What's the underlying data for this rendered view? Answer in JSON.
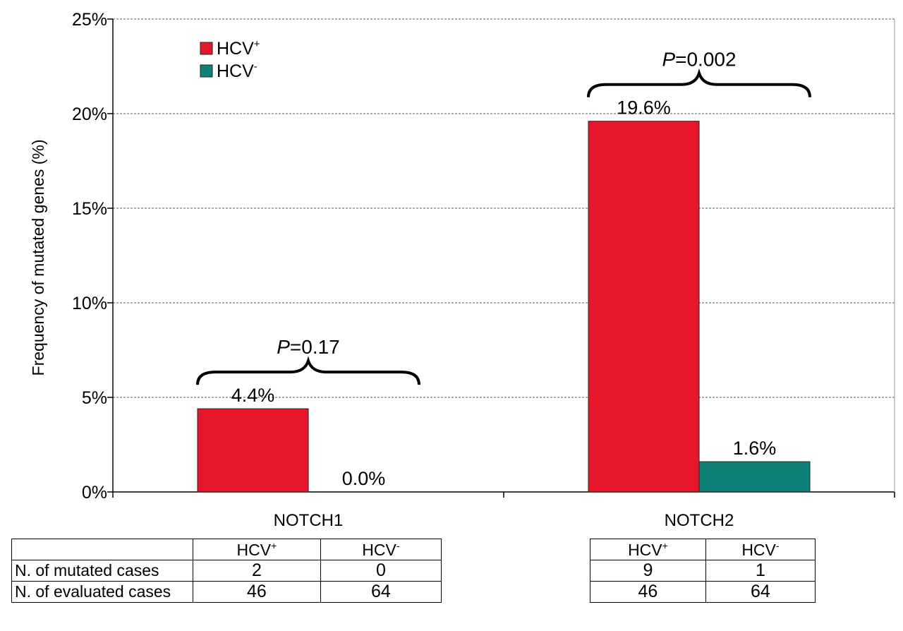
{
  "chart_data": {
    "type": "bar",
    "title": "",
    "ylabel": "Frequency of mutated genes (%)",
    "xlabel": "",
    "ylim": [
      0,
      25
    ],
    "yticks": [
      0,
      5,
      10,
      15,
      20,
      25
    ],
    "ytick_labels": [
      "0%",
      "5%",
      "10%",
      "15%",
      "20%",
      "25%"
    ],
    "grid": true,
    "legend_position": "top-left",
    "categories": [
      "NOTCH1",
      "NOTCH2"
    ],
    "series": [
      {
        "name": "HCV+",
        "sup": "+",
        "color": "#e8162b",
        "values": [
          4.4,
          19.6
        ],
        "labels": [
          "4.4%",
          "19.6%"
        ]
      },
      {
        "name": "HCV-",
        "sup": "-",
        "color": "#0f8078",
        "values": [
          0.0,
          1.6
        ],
        "labels": [
          "0.0%",
          "1.6%"
        ]
      }
    ],
    "annotations": [
      {
        "category": "NOTCH1",
        "p_italic": "P",
        "p_value": "=0.17"
      },
      {
        "category": "NOTCH2",
        "p_italic": "P",
        "p_value": "=0.002"
      }
    ]
  },
  "tables": {
    "row_labels": [
      "N. of mutated cases",
      "N. of evaluated cases"
    ],
    "col_base": "HCV",
    "col_sups": [
      "+",
      "-"
    ],
    "notch1": {
      "mutated": [
        "2",
        "0"
      ],
      "evaluated": [
        "46",
        "64"
      ]
    },
    "notch2": {
      "mutated": [
        "9",
        "1"
      ],
      "evaluated": [
        "46",
        "64"
      ]
    }
  }
}
